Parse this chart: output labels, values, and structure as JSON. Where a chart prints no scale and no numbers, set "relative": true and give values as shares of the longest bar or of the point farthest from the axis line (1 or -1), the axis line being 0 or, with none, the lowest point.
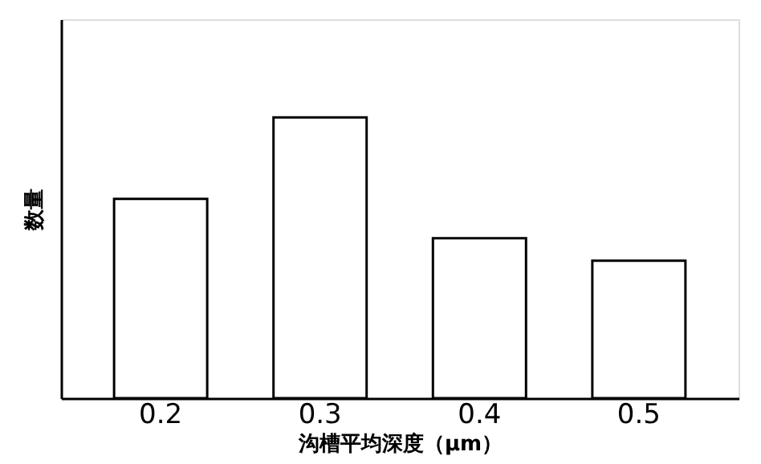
{
  "chart_data": {
    "type": "bar",
    "xlabel": "沟槽平均深度（μm）",
    "ylabel": "数量",
    "categories": [
      "0.2",
      "0.3",
      "0.4",
      "0.5"
    ],
    "values": [
      0.71,
      1,
      0.57,
      0.49
    ],
    "color": "#ffffff",
    "relative": true,
    "grid": false
  }
}
